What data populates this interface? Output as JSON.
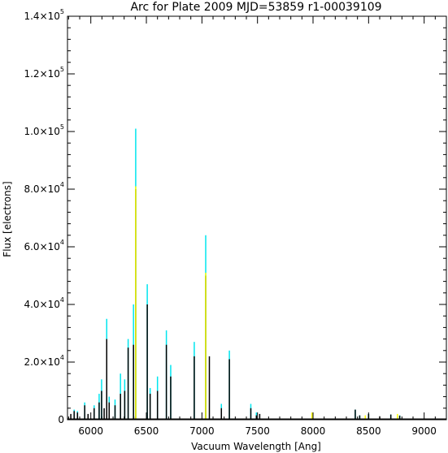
{
  "chart_data": {
    "type": "line",
    "title": "Arc for Plate 2009   MJD=53859   r1-00039109",
    "xlabel": "Vacuum Wavelength [Ang]",
    "ylabel": "Flux [electrons]",
    "xlim": [
      5790,
      9200
    ],
    "ylim": [
      0,
      140000
    ],
    "xticks": [
      6000,
      6500,
      7000,
      7500,
      8000,
      8500,
      9000
    ],
    "yticks": [
      {
        "value": 0,
        "mant": "0",
        "exp": ""
      },
      {
        "value": 20000,
        "mant": "2.0×10",
        "exp": "4"
      },
      {
        "value": 40000,
        "mant": "4.0×10",
        "exp": "4"
      },
      {
        "value": 60000,
        "mant": "6.0×10",
        "exp": "4"
      },
      {
        "value": 80000,
        "mant": "8.0×10",
        "exp": "4"
      },
      {
        "value": 100000,
        "mant": "1.0×10",
        "exp": "5"
      },
      {
        "value": 120000,
        "mant": "1.2×10",
        "exp": "5"
      },
      {
        "value": 140000,
        "mant": "1.4×10",
        "exp": "5"
      }
    ],
    "colors": {
      "primary": "#000000",
      "secondary": "#00e5ee",
      "tertiary": "#ffff00"
    },
    "series": [
      {
        "color_key": "secondary",
        "lines": [
          {
            "x": 5850,
            "y": 3500
          },
          {
            "x": 5880,
            "y": 3000
          },
          {
            "x": 5945,
            "y": 6000
          },
          {
            "x": 6030,
            "y": 5000
          },
          {
            "x": 6075,
            "y": 9000
          },
          {
            "x": 6097,
            "y": 14000
          },
          {
            "x": 6143,
            "y": 35000
          },
          {
            "x": 6165,
            "y": 8000
          },
          {
            "x": 6218,
            "y": 7000
          },
          {
            "x": 6267,
            "y": 16000
          },
          {
            "x": 6305,
            "y": 14000
          },
          {
            "x": 6336,
            "y": 28000
          },
          {
            "x": 6384,
            "y": 40000
          },
          {
            "x": 6404,
            "y": 101000
          },
          {
            "x": 6508,
            "y": 47000
          },
          {
            "x": 6534,
            "y": 11000
          },
          {
            "x": 6600,
            "y": 15000
          },
          {
            "x": 6680,
            "y": 31000
          },
          {
            "x": 6719,
            "y": 19000
          },
          {
            "x": 6931,
            "y": 27000
          },
          {
            "x": 7034,
            "y": 64000
          },
          {
            "x": 7175,
            "y": 5500
          },
          {
            "x": 7247,
            "y": 24000
          },
          {
            "x": 7440,
            "y": 5500
          },
          {
            "x": 7490,
            "y": 2500
          },
          {
            "x": 8380,
            "y": 3500
          },
          {
            "x": 8420,
            "y": 1500
          },
          {
            "x": 8500,
            "y": 2000
          },
          {
            "x": 8700,
            "y": 1800
          },
          {
            "x": 8780,
            "y": 1500
          }
        ]
      },
      {
        "color_key": "primary",
        "lines": [
          {
            "x": 5820,
            "y": 2000
          },
          {
            "x": 5850,
            "y": 3000
          },
          {
            "x": 5880,
            "y": 2500
          },
          {
            "x": 5945,
            "y": 5000
          },
          {
            "x": 5975,
            "y": 2000
          },
          {
            "x": 6030,
            "y": 4000
          },
          {
            "x": 6075,
            "y": 6000
          },
          {
            "x": 6097,
            "y": 10000
          },
          {
            "x": 6120,
            "y": 4000
          },
          {
            "x": 6143,
            "y": 28000
          },
          {
            "x": 6165,
            "y": 6000
          },
          {
            "x": 6218,
            "y": 5000
          },
          {
            "x": 6267,
            "y": 9000
          },
          {
            "x": 6305,
            "y": 10000
          },
          {
            "x": 6336,
            "y": 25000
          },
          {
            "x": 6384,
            "y": 26000
          },
          {
            "x": 6404,
            "y": 80000
          },
          {
            "x": 6508,
            "y": 40000
          },
          {
            "x": 6534,
            "y": 9000
          },
          {
            "x": 6600,
            "y": 10000
          },
          {
            "x": 6680,
            "y": 26000
          },
          {
            "x": 6719,
            "y": 15000
          },
          {
            "x": 6931,
            "y": 22000
          },
          {
            "x": 7034,
            "y": 50000
          },
          {
            "x": 7067,
            "y": 22000
          },
          {
            "x": 7175,
            "y": 4000
          },
          {
            "x": 7247,
            "y": 21000
          },
          {
            "x": 7440,
            "y": 4000
          },
          {
            "x": 7490,
            "y": 1500
          },
          {
            "x": 7520,
            "y": 2000
          },
          {
            "x": 8380,
            "y": 3500
          },
          {
            "x": 8420,
            "y": 1500
          },
          {
            "x": 8500,
            "y": 2000
          },
          {
            "x": 8600,
            "y": 1200
          },
          {
            "x": 8700,
            "y": 1800
          },
          {
            "x": 8780,
            "y": 1400
          }
        ]
      },
      {
        "color_key": "tertiary",
        "lines": [
          {
            "x": 6404,
            "y": 81000
          },
          {
            "x": 7034,
            "y": 51000
          },
          {
            "x": 7990,
            "y": 2500
          },
          {
            "x": 8470,
            "y": 1500
          },
          {
            "x": 8760,
            "y": 2000
          }
        ]
      }
    ]
  }
}
